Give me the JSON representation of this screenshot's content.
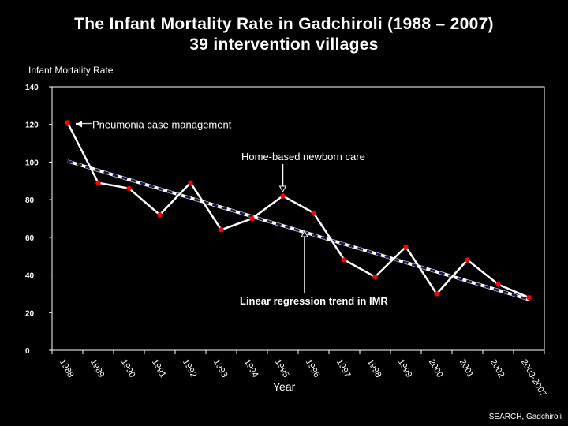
{
  "title_line1": "The Infant Mortality Rate in Gadchiroli  (1988 – 2007)",
  "title_line2": "39 intervention villages",
  "credit": "SEARCH, Gadchiroli",
  "chart_data": {
    "type": "line",
    "title": "The Infant Mortality Rate in Gadchiroli  (1988 – 2007) 39 intervention villages",
    "ylabel": "Infant Mortality Rate",
    "xlabel": "Year",
    "ylim": [
      0,
      140
    ],
    "yticks": [
      0,
      20,
      40,
      60,
      80,
      100,
      120,
      140
    ],
    "categories": [
      "1988",
      "1989",
      "1990",
      "1991",
      "1992",
      "1993",
      "1994",
      "1995",
      "1996",
      "1997",
      "1998",
      "1999",
      "2000",
      "2001",
      "2002",
      "2003-2007"
    ],
    "series": [
      {
        "values": [
          121,
          89,
          86,
          72,
          89,
          64,
          70,
          82,
          73,
          48,
          39,
          55,
          30,
          48,
          35,
          28
        ]
      }
    ],
    "trend": {
      "label": "Linear regression trend in IMR",
      "start": 100.5,
      "end": 27
    },
    "annotations": [
      {
        "text": "Pneumonia case management",
        "category": "1988"
      },
      {
        "text": "Home-based newborn care",
        "category": "1995"
      },
      {
        "text": "Linear regression trend in IMR",
        "category": "1995"
      }
    ],
    "grid": false,
    "legend": "none",
    "colors": {
      "background": "#000000",
      "line": "#ffffff",
      "marker": "#ff0000",
      "trend": "#1a1a4d"
    }
  }
}
